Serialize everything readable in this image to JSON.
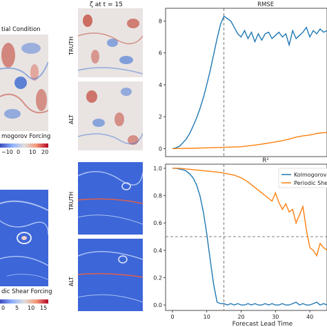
{
  "left": {
    "top_title": "tial Condition",
    "top_caption": "mogorov Forcing",
    "top_colorbar_ticks": [
      "−10",
      "0",
      "10",
      "20"
    ],
    "bottom_caption": "dic Shear Forcing",
    "bottom_colorbar_ticks": [
      "0",
      "5",
      "10",
      "15"
    ]
  },
  "middle": {
    "title": "ζ at t = 15",
    "row_labels": [
      "TRUTH",
      "ALT",
      "TRUTH",
      "ALT"
    ]
  },
  "colors": {
    "kolmogorov": "#1f77b4",
    "shear": "#ff7f0e",
    "field_bg": "#e9e4e2",
    "field_red": "#c0392b",
    "field_blue": "#3b6fd6",
    "shear_bg": "#3d66d8",
    "shear_light": "#a9c1f3",
    "shear_red": "#e0604a"
  },
  "chart_data": [
    {
      "type": "line",
      "title": "RMSE",
      "xlabel": "",
      "ylabel": "",
      "xlim": [
        -2,
        45
      ],
      "ylim": [
        -0.5,
        8.8
      ],
      "xticks": [],
      "yticks": [
        0,
        2,
        4,
        6,
        8
      ],
      "vline": 15,
      "series": [
        {
          "name": "Kolmogorov",
          "x": [
            0,
            1,
            2,
            3,
            4,
            5,
            6,
            7,
            8,
            9,
            10,
            11,
            12,
            13,
            14,
            15,
            16,
            17,
            18,
            19,
            20,
            21,
            22,
            23,
            24,
            25,
            26,
            27,
            28,
            29,
            30,
            31,
            32,
            33,
            34,
            35,
            36,
            37,
            38,
            39,
            40,
            41,
            42,
            43,
            44,
            45
          ],
          "values": [
            0,
            0.05,
            0.15,
            0.35,
            0.6,
            0.95,
            1.4,
            1.9,
            2.5,
            3.2,
            4.0,
            4.9,
            5.9,
            6.9,
            7.8,
            8.3,
            8.15,
            8.0,
            7.6,
            7.2,
            7.0,
            7.4,
            6.9,
            7.3,
            6.7,
            7.2,
            6.8,
            7.2,
            7.3,
            6.9,
            7.1,
            7.3,
            7.0,
            7.2,
            6.5,
            7.4,
            6.9,
            7.1,
            7.3,
            7.6,
            7.0,
            7.4,
            7.2,
            7.5,
            7.3,
            7.4
          ]
        },
        {
          "name": "Periodic Shear",
          "x": [
            0,
            5,
            10,
            15,
            20,
            25,
            28,
            30,
            32,
            34,
            36,
            38,
            40,
            42,
            44,
            45
          ],
          "values": [
            0,
            0.02,
            0.05,
            0.08,
            0.12,
            0.25,
            0.35,
            0.42,
            0.5,
            0.6,
            0.72,
            0.8,
            0.85,
            0.95,
            1.0,
            1.0
          ]
        }
      ]
    },
    {
      "type": "line",
      "title": "R²",
      "xlabel": "Forecast Lead Time",
      "ylabel": "",
      "xlim": [
        -2,
        45
      ],
      "ylim": [
        -0.04,
        1.03
      ],
      "xticks": [
        0,
        10,
        20,
        30,
        40
      ],
      "yticks": [
        0.0,
        0.2,
        0.4,
        0.6,
        0.8,
        1.0
      ],
      "vline": 15,
      "hline": 0.5,
      "legend": [
        "Kolmogorov",
        "Periodic Shear"
      ],
      "legend_position": "top-right",
      "series": [
        {
          "name": "Kolmogorov",
          "x": [
            0,
            1,
            2,
            3,
            4,
            5,
            6,
            7,
            8,
            9,
            10,
            11,
            12,
            13,
            14,
            15,
            16,
            17,
            18,
            19,
            20,
            21,
            22,
            23,
            24,
            25,
            26,
            27,
            28,
            29,
            30,
            31,
            32,
            33,
            34,
            35,
            36,
            37,
            38,
            39,
            40,
            41,
            42,
            43,
            44,
            45
          ],
          "values": [
            1.0,
            1.0,
            0.995,
            0.99,
            0.98,
            0.96,
            0.93,
            0.88,
            0.8,
            0.68,
            0.52,
            0.33,
            0.15,
            0.02,
            0.01,
            0.01,
            0.0,
            0.01,
            0.0,
            0.01,
            0.0,
            0.0,
            0.01,
            0.0,
            0.01,
            0.0,
            0.0,
            0.01,
            0.0,
            0.01,
            0.0,
            0.0,
            0.01,
            0.0,
            0.0,
            0.01,
            0.02,
            0.0,
            0.01,
            0.0,
            0.0,
            0.01,
            0.02,
            0.0,
            0.01,
            0.0
          ]
        },
        {
          "name": "Periodic Shear",
          "x": [
            0,
            2,
            4,
            6,
            8,
            10,
            12,
            14,
            16,
            18,
            20,
            22,
            24,
            26,
            28,
            29,
            30,
            31,
            32,
            33,
            34,
            35,
            36,
            37,
            38,
            39,
            40,
            41,
            42,
            43,
            44,
            45
          ],
          "values": [
            1.0,
            1.0,
            0.995,
            0.99,
            0.985,
            0.98,
            0.975,
            0.97,
            0.96,
            0.95,
            0.93,
            0.9,
            0.86,
            0.82,
            0.78,
            0.76,
            0.82,
            0.75,
            0.7,
            0.74,
            0.68,
            0.7,
            0.6,
            0.66,
            0.72,
            0.55,
            0.42,
            0.4,
            0.36,
            0.45,
            0.42,
            0.4
          ]
        }
      ]
    }
  ]
}
